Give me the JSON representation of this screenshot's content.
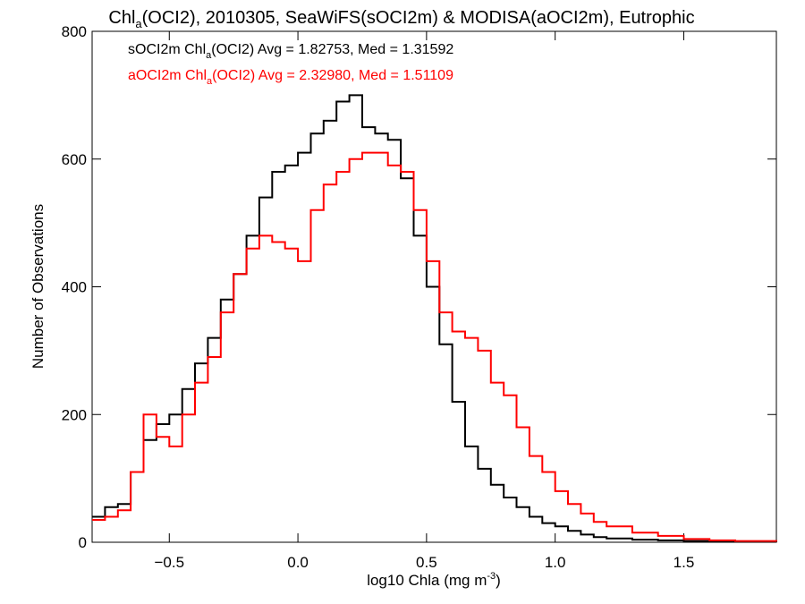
{
  "chart_data": {
    "type": "line",
    "title": {
      "prefix": "Chl",
      "sub": "a",
      "rest": "(OCI2), 2010305, SeaWiFS(sOCI2m) & MODISA(aOCI2m), Eutrophic"
    },
    "xlabel": {
      "main": "log10 Chla (mg m",
      "sup": "-3",
      "end": ")"
    },
    "ylabel": "Number of Observations",
    "xlim": [
      -0.8,
      1.86
    ],
    "ylim": [
      0,
      800
    ],
    "xticks": [
      {
        "v": -0.5,
        "label": "−0.5"
      },
      {
        "v": 0.0,
        "label": "0.0"
      },
      {
        "v": 0.5,
        "label": "0.5"
      },
      {
        "v": 1.0,
        "label": "1.0"
      },
      {
        "v": 1.5,
        "label": "1.5"
      }
    ],
    "yticks": [
      {
        "v": 0,
        "label": "0"
      },
      {
        "v": 200,
        "label": "200"
      },
      {
        "v": 400,
        "label": "400"
      },
      {
        "v": 600,
        "label": "600"
      },
      {
        "v": 800,
        "label": "800"
      }
    ],
    "legend_position": "top-left",
    "series": [
      {
        "name": "sOCI2m",
        "color": "#000000",
        "label": {
          "pre": "sOCI2m Chl",
          "sub": "a",
          "post": "(OCI2) Avg = 1.82753, Med = 1.31592"
        },
        "x": [
          -0.8,
          -0.75,
          -0.7,
          -0.65,
          -0.6,
          -0.55,
          -0.5,
          -0.45,
          -0.4,
          -0.35,
          -0.3,
          -0.25,
          -0.2,
          -0.15,
          -0.1,
          -0.05,
          0.0,
          0.05,
          0.1,
          0.15,
          0.2,
          0.25,
          0.3,
          0.35,
          0.4,
          0.45,
          0.5,
          0.55,
          0.6,
          0.65,
          0.7,
          0.75,
          0.8,
          0.85,
          0.9,
          0.95,
          1.0,
          1.05,
          1.1,
          1.15,
          1.2,
          1.3,
          1.4,
          1.5,
          1.6,
          1.7,
          1.86
        ],
        "y": [
          40,
          55,
          60,
          110,
          160,
          185,
          200,
          240,
          280,
          320,
          380,
          420,
          480,
          540,
          580,
          590,
          610,
          640,
          660,
          690,
          700,
          650,
          640,
          630,
          570,
          480,
          400,
          310,
          220,
          150,
          115,
          90,
          70,
          55,
          40,
          30,
          25,
          18,
          12,
          8,
          6,
          4,
          3,
          2,
          1,
          1,
          0
        ]
      },
      {
        "name": "aOCI2m",
        "color": "#ff0000",
        "label": {
          "pre": "aOCI2m Chl",
          "sub": "a",
          "post": "(OCI2) Avg = 2.32980, Med = 1.51109"
        },
        "x": [
          -0.8,
          -0.75,
          -0.7,
          -0.65,
          -0.6,
          -0.55,
          -0.5,
          -0.45,
          -0.4,
          -0.35,
          -0.3,
          -0.25,
          -0.2,
          -0.15,
          -0.1,
          -0.05,
          0.0,
          0.05,
          0.1,
          0.15,
          0.2,
          0.25,
          0.3,
          0.35,
          0.4,
          0.45,
          0.5,
          0.55,
          0.6,
          0.65,
          0.7,
          0.75,
          0.8,
          0.85,
          0.9,
          0.95,
          1.0,
          1.05,
          1.1,
          1.15,
          1.2,
          1.3,
          1.4,
          1.5,
          1.6,
          1.7,
          1.86
        ],
        "y": [
          35,
          40,
          50,
          110,
          200,
          165,
          150,
          200,
          250,
          290,
          360,
          420,
          460,
          480,
          470,
          460,
          440,
          520,
          560,
          580,
          600,
          610,
          610,
          590,
          580,
          520,
          440,
          360,
          330,
          320,
          300,
          250,
          230,
          180,
          135,
          110,
          80,
          60,
          45,
          32,
          25,
          15,
          10,
          5,
          3,
          2,
          1
        ]
      }
    ]
  }
}
